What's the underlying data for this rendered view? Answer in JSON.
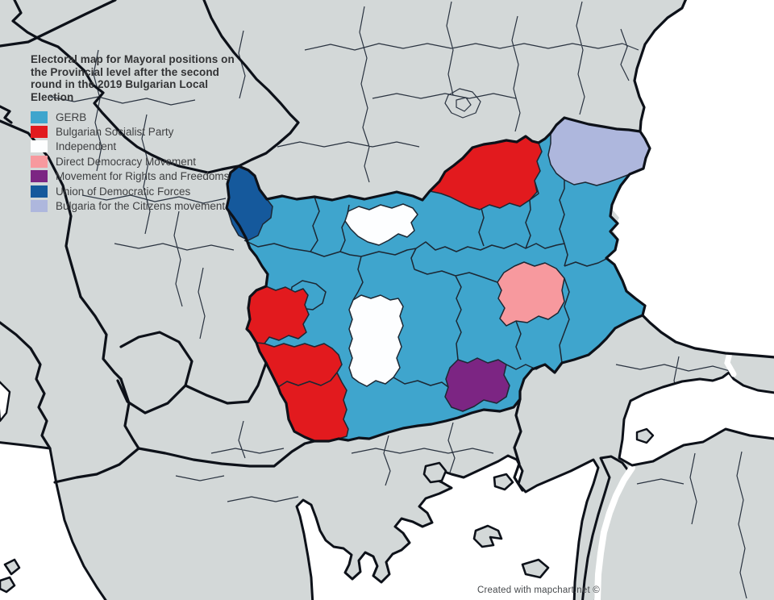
{
  "title": {
    "lines": [
      "Electoral map for Mayoral positions on",
      "the Provincial level after the second",
      "round in the 2019 Bulgarian Local",
      "Election"
    ]
  },
  "legend": {
    "items": [
      {
        "party": "GERB",
        "color": "#3fa5cd"
      },
      {
        "party": "Bulgarian Socialist Party",
        "color": "#e21a1e"
      },
      {
        "party": "Independent",
        "color": "#fdfeff"
      },
      {
        "party": "Direct Democracy Movement",
        "color": "#f7999e"
      },
      {
        "party": "Movement for Rights and Freedoms",
        "color": "#7c2583"
      },
      {
        "party": "Union of Democratic Forces",
        "color": "#15599c"
      },
      {
        "party": "Bulgaria for the Citizens movement",
        "color": "#aeb7dd"
      }
    ]
  },
  "credit": "Created with mapchart.net ©",
  "map": {
    "palette": {
      "sea": "#ffffff",
      "foreign_land": "#d3d8d8",
      "national_border": "#0d1119",
      "regional_border": "#1c2733"
    },
    "regions": [
      {
        "id": "bulgaria-base",
        "party": "GERB"
      },
      {
        "id": "vidin",
        "party": "Union of Democratic Forces"
      },
      {
        "id": "pleven",
        "party": "Independent"
      },
      {
        "id": "ruse",
        "party": "Bulgarian Socialist Party"
      },
      {
        "id": "dobrich",
        "party": "Bulgaria for the Citizens movement"
      },
      {
        "id": "sliven",
        "party": "Direct Democracy Movement"
      },
      {
        "id": "kardzhali",
        "party": "Movement for Rights and Freedoms"
      },
      {
        "id": "pernik",
        "party": "Bulgarian Socialist Party"
      },
      {
        "id": "kyustendil",
        "party": "Bulgarian Socialist Party"
      },
      {
        "id": "blagoevgrad",
        "party": "Bulgarian Socialist Party"
      },
      {
        "id": "pazardzhik",
        "party": "Independent"
      }
    ]
  }
}
